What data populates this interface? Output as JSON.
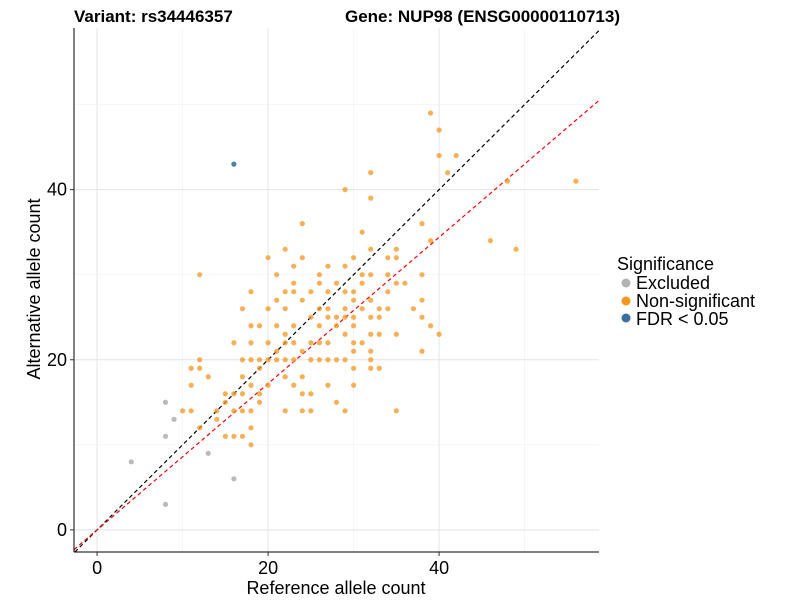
{
  "chart_data": {
    "type": "scatter",
    "title_left": "Variant: rs34446357",
    "title_right": "Gene: NUP98 (ENSG00000110713)",
    "xlabel": "Reference allele count",
    "ylabel": "Alternative allele count",
    "xlim": [
      -2.7,
      58.7
    ],
    "ylim": [
      -2.6,
      59.0
    ],
    "xticks": [
      0,
      20,
      40
    ],
    "yticks": [
      0,
      20,
      40
    ],
    "grid": true,
    "legend": {
      "title": "Significance",
      "placement": "right",
      "entries": [
        {
          "label": "Excluded",
          "color": "#b3b3b3"
        },
        {
          "label": "Non-significant",
          "color": "#f5961e"
        },
        {
          "label": "FDR < 0.05",
          "color": "#3c6e9e"
        }
      ]
    },
    "lines": [
      {
        "name": "identity",
        "slope": 1.0,
        "intercept": 0,
        "color": "#000000",
        "dash": "dashed"
      },
      {
        "name": "fit",
        "slope": 0.86,
        "intercept": 0,
        "color": "#ff0000",
        "dash": "dashed"
      }
    ],
    "series": [
      {
        "name": "Excluded",
        "color": "#b3b3b3",
        "points": [
          [
            4,
            8
          ],
          [
            8,
            15
          ],
          [
            8,
            11
          ],
          [
            8,
            3
          ],
          [
            9,
            13
          ],
          [
            13,
            9
          ],
          [
            16,
            6
          ]
        ]
      },
      {
        "name": "FDR < 0.05",
        "color": "#3c6e9e",
        "points": [
          [
            16,
            43
          ]
        ]
      },
      {
        "name": "Non-significant",
        "color": "#f5961e",
        "points": [
          [
            10,
            14
          ],
          [
            11,
            17
          ],
          [
            11,
            14
          ],
          [
            11,
            19
          ],
          [
            12,
            12
          ],
          [
            12,
            19
          ],
          [
            12,
            20
          ],
          [
            12,
            30
          ],
          [
            13,
            18
          ],
          [
            14,
            14
          ],
          [
            14,
            13
          ],
          [
            15,
            11
          ],
          [
            15,
            15
          ],
          [
            15,
            16
          ],
          [
            16,
            14
          ],
          [
            16,
            16
          ],
          [
            16,
            22
          ],
          [
            16,
            11
          ],
          [
            17,
            11
          ],
          [
            17,
            14
          ],
          [
            17,
            16
          ],
          [
            17,
            18
          ],
          [
            17,
            20
          ],
          [
            17,
            26
          ],
          [
            18,
            12
          ],
          [
            18,
            14
          ],
          [
            18,
            17
          ],
          [
            18,
            20
          ],
          [
            18,
            22
          ],
          [
            18,
            24
          ],
          [
            18,
            28
          ],
          [
            18,
            10
          ],
          [
            19,
            20
          ],
          [
            19,
            24
          ],
          [
            19,
            16
          ],
          [
            19,
            19
          ],
          [
            19,
            15
          ],
          [
            20,
            17
          ],
          [
            20,
            20
          ],
          [
            20,
            22
          ],
          [
            20,
            26
          ],
          [
            20,
            32
          ],
          [
            21,
            20
          ],
          [
            21,
            24
          ],
          [
            21,
            27
          ],
          [
            21,
            30
          ],
          [
            21,
            21
          ],
          [
            22,
            14
          ],
          [
            22,
            18
          ],
          [
            22,
            20
          ],
          [
            22,
            22
          ],
          [
            22,
            23
          ],
          [
            22,
            26
          ],
          [
            22,
            28
          ],
          [
            22,
            33
          ],
          [
            23,
            17
          ],
          [
            23,
            20
          ],
          [
            23,
            24
          ],
          [
            23,
            28
          ],
          [
            23,
            29
          ],
          [
            23,
            31
          ],
          [
            23,
            22
          ],
          [
            24,
            14
          ],
          [
            24,
            18
          ],
          [
            24,
            21
          ],
          [
            24,
            27
          ],
          [
            24,
            32
          ],
          [
            24,
            36
          ],
          [
            24,
            16
          ],
          [
            25,
            14
          ],
          [
            25,
            16
          ],
          [
            25,
            20
          ],
          [
            25,
            22
          ],
          [
            25,
            25
          ],
          [
            25,
            28
          ],
          [
            26,
            20
          ],
          [
            26,
            24
          ],
          [
            26,
            26
          ],
          [
            26,
            29
          ],
          [
            26,
            30
          ],
          [
            26,
            22
          ],
          [
            27,
            17
          ],
          [
            27,
            20
          ],
          [
            27,
            22
          ],
          [
            27,
            26
          ],
          [
            27,
            28
          ],
          [
            27,
            31
          ],
          [
            27,
            25
          ],
          [
            28,
            15
          ],
          [
            28,
            20
          ],
          [
            28,
            25
          ],
          [
            28,
            29
          ],
          [
            28,
            24
          ],
          [
            29,
            14
          ],
          [
            29,
            20
          ],
          [
            29,
            23
          ],
          [
            29,
            25
          ],
          [
            29,
            28
          ],
          [
            29,
            31
          ],
          [
            29,
            40
          ],
          [
            29,
            26
          ],
          [
            30,
            17
          ],
          [
            30,
            19
          ],
          [
            30,
            21
          ],
          [
            30,
            22
          ],
          [
            30,
            25
          ],
          [
            30,
            27
          ],
          [
            30,
            28
          ],
          [
            30,
            32
          ],
          [
            30,
            24
          ],
          [
            31,
            22
          ],
          [
            31,
            29
          ],
          [
            31,
            30
          ],
          [
            31,
            35
          ],
          [
            31,
            26
          ],
          [
            32,
            19
          ],
          [
            32,
            20
          ],
          [
            32,
            23
          ],
          [
            32,
            25
          ],
          [
            32,
            27
          ],
          [
            32,
            33
          ],
          [
            32,
            39
          ],
          [
            32,
            42
          ],
          [
            32,
            30
          ],
          [
            32,
            21
          ],
          [
            33,
            19
          ],
          [
            33,
            23
          ],
          [
            33,
            25
          ],
          [
            33,
            26
          ],
          [
            34,
            26
          ],
          [
            34,
            28
          ],
          [
            34,
            30
          ],
          [
            34,
            32
          ],
          [
            35,
            14
          ],
          [
            35,
            23
          ],
          [
            35,
            29
          ],
          [
            35,
            32
          ],
          [
            35,
            33
          ],
          [
            36,
            29
          ],
          [
            37,
            26
          ],
          [
            38,
            21
          ],
          [
            38,
            25
          ],
          [
            38,
            27
          ],
          [
            38,
            30
          ],
          [
            38,
            36
          ],
          [
            39,
            24
          ],
          [
            39,
            34
          ],
          [
            39,
            49
          ],
          [
            40,
            23
          ],
          [
            40,
            44
          ],
          [
            40,
            47
          ],
          [
            41,
            42
          ],
          [
            42,
            44
          ],
          [
            46,
            34
          ],
          [
            48,
            41
          ],
          [
            49,
            33
          ],
          [
            56,
            41
          ]
        ]
      }
    ]
  }
}
